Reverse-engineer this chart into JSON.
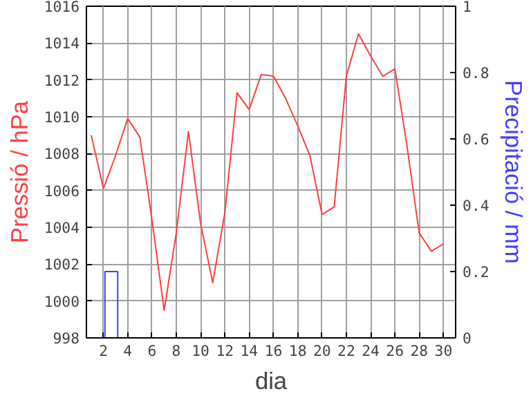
{
  "chart_data": {
    "type": "line",
    "xlabel": "dia",
    "ylabel": "Pressió / hPa",
    "y2label": "Precipitació / mm",
    "xlim": [
      0.6,
      31
    ],
    "xticks": [
      2,
      4,
      6,
      8,
      10,
      12,
      14,
      16,
      18,
      20,
      22,
      24,
      26,
      28,
      30
    ],
    "ylim": [
      998,
      1016
    ],
    "yticks": [
      998,
      1000,
      1002,
      1004,
      1006,
      1008,
      1010,
      1012,
      1014,
      1016
    ],
    "y2lim": [
      0,
      1
    ],
    "y2ticks": [
      0,
      0.2,
      0.4,
      0.6,
      0.8,
      1
    ],
    "grid": true,
    "series": [
      {
        "color": "#ff4040",
        "x": [
          1,
          2,
          3,
          4,
          5,
          6,
          7,
          8,
          9,
          10,
          11,
          12,
          13,
          14,
          15,
          16,
          17,
          18,
          19,
          20,
          21,
          22,
          23,
          24,
          25,
          26,
          27,
          28,
          29,
          30
        ],
        "values": [
          1009.0,
          1006.1,
          1007.9,
          1009.9,
          1008.9,
          1004.4,
          999.5,
          1003.7,
          1009.2,
          1004.2,
          1001.0,
          1004.8,
          1011.3,
          1010.4,
          1012.3,
          1012.2,
          1011.0,
          1009.5,
          1007.9,
          1004.7,
          1005.1,
          1012.2,
          1014.5,
          1013.3,
          1012.2,
          1012.6,
          1008.4,
          1003.7,
          1002.7,
          1003.1
        ]
      },
      {
        "type": "bar",
        "axis": "y2",
        "color": "#4040ff",
        "x": [
          2.65
        ],
        "values": [
          0.2
        ]
      }
    ]
  }
}
